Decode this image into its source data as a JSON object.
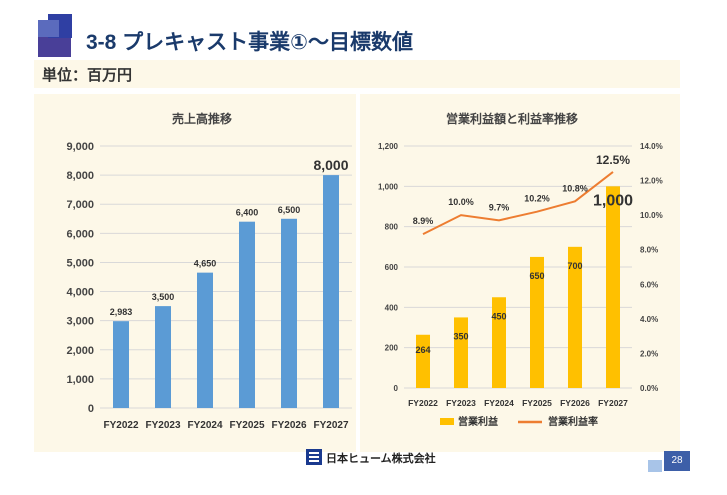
{
  "header": {
    "title": "3-8 プレキャスト事業①～目標数値",
    "unit": "単位：百万円"
  },
  "footer": {
    "company": "日本ヒューム株式会社",
    "page": "28"
  },
  "colors": {
    "title": "#1a3a6b",
    "bar_blue": "#5b9bd5",
    "bar_gold": "#ffc000",
    "line_orange": "#ed7d31",
    "panel_bg": "#fdf8e8",
    "page_box": "#3d5fa8"
  },
  "chart_data": [
    {
      "type": "bar",
      "title": "売上高推移",
      "categories": [
        "FY2022",
        "FY2023",
        "FY2024",
        "FY2025",
        "FY2026",
        "FY2027"
      ],
      "values": [
        2983,
        3500,
        4650,
        6400,
        6500,
        8000
      ],
      "value_labels": [
        "2,983",
        "3,500",
        "4,650",
        "6,400",
        "6,500",
        "8,000"
      ],
      "ylim": [
        0,
        9000
      ],
      "yticks": [
        0,
        1000,
        2000,
        3000,
        4000,
        5000,
        6000,
        7000,
        8000,
        9000
      ],
      "ytick_labels": [
        "0",
        "1,000",
        "2,000",
        "3,000",
        "4,000",
        "5,000",
        "6,000",
        "7,000",
        "8,000",
        "9,000"
      ],
      "grid": true,
      "color": "#5b9bd5"
    },
    {
      "type": "bar+line",
      "title": "営業利益額と利益率推移",
      "categories": [
        "FY2022",
        "FY2023",
        "FY2024",
        "FY2025",
        "FY2026",
        "FY2027"
      ],
      "series": [
        {
          "name": "営業利益",
          "type": "bar",
          "axis": "left",
          "values": [
            264,
            350,
            450,
            650,
            700,
            1000
          ],
          "labels": [
            "264",
            "350",
            "450",
            "650",
            "700",
            "1,000"
          ],
          "color": "#ffc000"
        },
        {
          "name": "営業利益率",
          "type": "line",
          "axis": "right",
          "values": [
            8.9,
            10.0,
            9.7,
            10.2,
            10.8,
            12.5
          ],
          "labels": [
            "8.9%",
            "10.0%",
            "9.7%",
            "10.2%",
            "10.8%",
            "12.5%"
          ],
          "color": "#ed7d31"
        }
      ],
      "ylim": [
        0,
        1200
      ],
      "yticks": [
        0,
        200,
        400,
        600,
        800,
        1000,
        1200
      ],
      "ytick_labels": [
        "0",
        "200",
        "400",
        "600",
        "800",
        "1,000",
        "1,200"
      ],
      "y2lim": [
        0,
        14
      ],
      "y2ticks": [
        0,
        2,
        4,
        6,
        8,
        10,
        12,
        14
      ],
      "y2tick_labels": [
        "0.0%",
        "2.0%",
        "4.0%",
        "6.0%",
        "8.0%",
        "10.0%",
        "12.0%",
        "14.0%"
      ],
      "grid": true,
      "legend_position": "bottom"
    }
  ]
}
